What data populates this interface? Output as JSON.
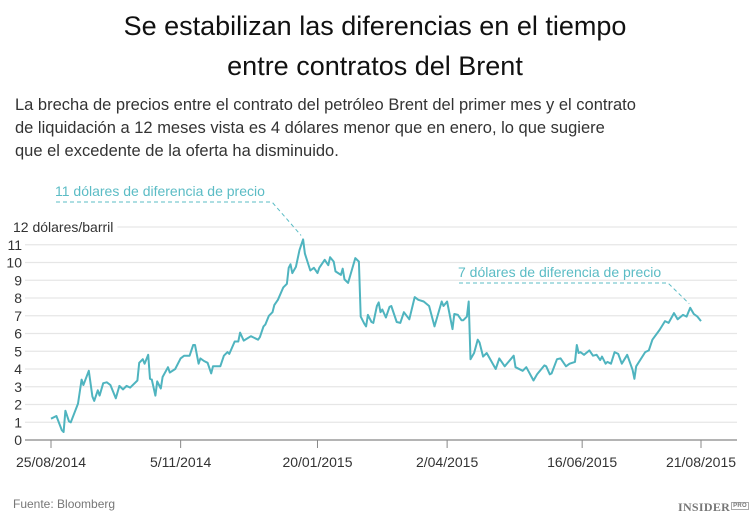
{
  "title_lines": [
    "Se estabilizan las diferencias en el tiempo",
    "entre contratos del Brent"
  ],
  "subtitle_lines": [
    "La brecha de precios entre el contrato del petróleo Brent del primer mes y el contrato",
    "de liquidación a 12 meses vista es 4 dólares menor que en enero, lo que sugiere",
    "que el excedente de la oferta ha disminuido."
  ],
  "source": "Fuente: Bloomberg",
  "logo": {
    "main": "INSIDER",
    "sup": "PRO"
  },
  "colors": {
    "line": "#4fb4bf",
    "annotation": "#5bbcc5",
    "grid": "#e6e6e6",
    "axis": "#888888",
    "text": "#333333"
  },
  "chart_data": {
    "type": "line",
    "ylabel": "dólares/barril",
    "ylim": [
      0,
      12
    ],
    "yticks": [
      0,
      1,
      2,
      3,
      4,
      5,
      6,
      7,
      8,
      9,
      10,
      11,
      12
    ],
    "xlim": [
      "2014-08-25",
      "2015-08-21"
    ],
    "xticks": [
      {
        "date": "2014-08-25",
        "label": "25/08/2014"
      },
      {
        "date": "2014-11-05",
        "label": "5/11/2014"
      },
      {
        "date": "2015-01-20",
        "label": "20/01/2015"
      },
      {
        "date": "2015-04-02",
        "label": "2/04/2015"
      },
      {
        "date": "2015-06-16",
        "label": "16/06/2015"
      },
      {
        "date": "2015-08-21",
        "label": "21/08/2015"
      }
    ],
    "grid": true,
    "annotations": [
      {
        "text": "11 dólares de diferencia de precio",
        "date": "2015-01-12",
        "value": 11.3
      },
      {
        "text": "7 dólares de diferencia de precio",
        "date": "2015-08-15",
        "value": 7.45
      }
    ],
    "series": [
      {
        "points": [
          [
            "2014-08-25",
            1.2
          ],
          [
            "2014-08-28",
            1.35
          ],
          [
            "2014-08-31",
            0.55
          ],
          [
            "2014-09-01",
            0.45
          ],
          [
            "2014-09-02",
            1.65
          ],
          [
            "2014-09-04",
            1.05
          ],
          [
            "2014-09-05",
            1.0
          ],
          [
            "2014-09-09",
            2.05
          ],
          [
            "2014-09-11",
            3.4
          ],
          [
            "2014-09-12",
            3.1
          ],
          [
            "2014-09-15",
            3.9
          ],
          [
            "2014-09-17",
            2.45
          ],
          [
            "2014-09-18",
            2.2
          ],
          [
            "2014-09-20",
            2.8
          ],
          [
            "2014-09-21",
            2.5
          ],
          [
            "2014-09-23",
            3.2
          ],
          [
            "2014-09-25",
            3.25
          ],
          [
            "2014-09-27",
            3.1
          ],
          [
            "2014-09-30",
            2.35
          ],
          [
            "2014-10-02",
            3.05
          ],
          [
            "2014-10-04",
            2.85
          ],
          [
            "2014-10-06",
            3.05
          ],
          [
            "2014-10-08",
            2.95
          ],
          [
            "2014-10-12",
            3.35
          ],
          [
            "2014-10-13",
            4.35
          ],
          [
            "2014-10-15",
            4.55
          ],
          [
            "2014-10-16",
            4.3
          ],
          [
            "2014-10-18",
            4.8
          ],
          [
            "2014-10-19",
            3.45
          ],
          [
            "2014-10-20",
            3.4
          ],
          [
            "2014-10-22",
            2.5
          ],
          [
            "2014-10-23",
            3.3
          ],
          [
            "2014-10-25",
            2.9
          ],
          [
            "2014-10-26",
            3.55
          ],
          [
            "2014-10-29",
            4.1
          ],
          [
            "2014-10-30",
            3.8
          ],
          [
            "2014-11-02",
            4.0
          ],
          [
            "2014-11-05",
            4.6
          ],
          [
            "2014-11-07",
            4.75
          ],
          [
            "2014-11-10",
            4.75
          ],
          [
            "2014-11-12",
            5.35
          ],
          [
            "2014-11-13",
            5.35
          ],
          [
            "2014-11-15",
            4.3
          ],
          [
            "2014-11-16",
            4.6
          ],
          [
            "2014-11-18",
            4.45
          ],
          [
            "2014-11-20",
            4.35
          ],
          [
            "2014-11-22",
            3.75
          ],
          [
            "2014-11-23",
            4.15
          ],
          [
            "2014-11-27",
            4.15
          ],
          [
            "2014-11-29",
            4.75
          ],
          [
            "2014-12-01",
            4.95
          ],
          [
            "2014-12-02",
            4.85
          ],
          [
            "2014-12-05",
            5.55
          ],
          [
            "2014-12-07",
            5.55
          ],
          [
            "2014-12-08",
            6.05
          ],
          [
            "2014-12-10",
            5.6
          ],
          [
            "2014-12-14",
            5.85
          ],
          [
            "2014-12-18",
            5.65
          ],
          [
            "2014-12-19",
            5.8
          ],
          [
            "2014-12-21",
            6.4
          ],
          [
            "2014-12-22",
            6.5
          ],
          [
            "2014-12-24",
            7.0
          ],
          [
            "2014-12-26",
            7.2
          ],
          [
            "2014-12-27",
            7.6
          ],
          [
            "2014-12-29",
            7.9
          ],
          [
            "2015-01-01",
            8.6
          ],
          [
            "2015-01-03",
            8.8
          ],
          [
            "2015-01-04",
            9.7
          ],
          [
            "2015-01-05",
            9.9
          ],
          [
            "2015-01-06",
            9.4
          ],
          [
            "2015-01-08",
            9.75
          ],
          [
            "2015-01-10",
            10.7
          ],
          [
            "2015-01-12",
            11.3
          ],
          [
            "2015-01-13",
            10.5
          ],
          [
            "2015-01-16",
            9.55
          ],
          [
            "2015-01-18",
            9.7
          ],
          [
            "2015-01-20",
            9.4
          ],
          [
            "2015-01-21",
            9.7
          ],
          [
            "2015-01-24",
            10.15
          ],
          [
            "2015-01-26",
            9.85
          ],
          [
            "2015-01-27",
            10.3
          ],
          [
            "2015-01-29",
            10.05
          ],
          [
            "2015-01-30",
            9.5
          ],
          [
            "2015-02-02",
            9.3
          ],
          [
            "2015-02-03",
            9.65
          ],
          [
            "2015-02-04",
            9.05
          ],
          [
            "2015-02-06",
            8.85
          ],
          [
            "2015-02-10",
            10.25
          ],
          [
            "2015-02-12",
            10.05
          ],
          [
            "2015-02-13",
            6.95
          ],
          [
            "2015-02-15",
            6.55
          ],
          [
            "2015-02-16",
            6.4
          ],
          [
            "2015-02-17",
            7.05
          ],
          [
            "2015-02-19",
            6.65
          ],
          [
            "2015-02-20",
            6.6
          ],
          [
            "2015-02-22",
            7.55
          ],
          [
            "2015-02-23",
            7.75
          ],
          [
            "2015-02-24",
            7.2
          ],
          [
            "2015-02-25",
            7.35
          ],
          [
            "2015-02-27",
            6.9
          ],
          [
            "2015-03-01",
            7.5
          ],
          [
            "2015-03-02",
            7.55
          ],
          [
            "2015-03-05",
            6.65
          ],
          [
            "2015-03-07",
            6.6
          ],
          [
            "2015-03-09",
            7.2
          ],
          [
            "2015-03-12",
            6.8
          ],
          [
            "2015-03-15",
            8.05
          ],
          [
            "2015-03-17",
            7.9
          ],
          [
            "2015-03-20",
            7.8
          ],
          [
            "2015-03-23",
            7.55
          ],
          [
            "2015-03-26",
            6.4
          ],
          [
            "2015-03-30",
            7.8
          ],
          [
            "2015-03-31",
            7.55
          ],
          [
            "2015-04-02",
            7.8
          ],
          [
            "2015-04-05",
            6.25
          ],
          [
            "2015-04-06",
            7.1
          ],
          [
            "2015-04-08",
            7.05
          ],
          [
            "2015-04-10",
            6.75
          ],
          [
            "2015-04-11",
            6.75
          ],
          [
            "2015-04-13",
            6.95
          ],
          [
            "2015-04-14",
            7.8
          ],
          [
            "2015-04-15",
            4.55
          ],
          [
            "2015-04-17",
            4.9
          ],
          [
            "2015-04-19",
            5.65
          ],
          [
            "2015-04-20",
            5.5
          ],
          [
            "2015-04-22",
            4.7
          ],
          [
            "2015-04-24",
            4.9
          ],
          [
            "2015-04-29",
            4.0
          ],
          [
            "2015-05-01",
            4.6
          ],
          [
            "2015-05-04",
            4.15
          ],
          [
            "2015-05-09",
            4.75
          ],
          [
            "2015-05-10",
            4.1
          ],
          [
            "2015-05-14",
            3.9
          ],
          [
            "2015-05-16",
            4.1
          ],
          [
            "2015-05-20",
            3.35
          ],
          [
            "2015-05-22",
            3.7
          ],
          [
            "2015-05-26",
            4.2
          ],
          [
            "2015-05-27",
            4.15
          ],
          [
            "2015-05-29",
            3.7
          ],
          [
            "2015-05-30",
            3.75
          ],
          [
            "2015-06-02",
            4.55
          ],
          [
            "2015-06-04",
            4.6
          ],
          [
            "2015-06-07",
            4.15
          ],
          [
            "2015-06-09",
            4.3
          ],
          [
            "2015-06-12",
            4.4
          ],
          [
            "2015-06-13",
            5.35
          ],
          [
            "2015-06-14",
            4.9
          ],
          [
            "2015-06-15",
            4.95
          ],
          [
            "2015-06-17",
            4.8
          ],
          [
            "2015-06-20",
            5.05
          ],
          [
            "2015-06-22",
            4.75
          ],
          [
            "2015-06-24",
            4.8
          ],
          [
            "2015-06-26",
            4.5
          ],
          [
            "2015-06-27",
            4.7
          ],
          [
            "2015-06-29",
            4.3
          ],
          [
            "2015-06-30",
            4.4
          ],
          [
            "2015-07-02",
            4.3
          ],
          [
            "2015-07-04",
            4.95
          ],
          [
            "2015-07-06",
            4.85
          ],
          [
            "2015-07-08",
            4.3
          ],
          [
            "2015-07-11",
            4.8
          ],
          [
            "2015-07-14",
            3.95
          ],
          [
            "2015-07-15",
            3.45
          ],
          [
            "2015-07-16",
            4.15
          ],
          [
            "2015-07-21",
            4.95
          ],
          [
            "2015-07-23",
            5.05
          ],
          [
            "2015-07-25",
            5.65
          ],
          [
            "2015-07-29",
            6.2
          ],
          [
            "2015-08-01",
            6.7
          ],
          [
            "2015-08-03",
            6.6
          ],
          [
            "2015-08-06",
            7.15
          ],
          [
            "2015-08-08",
            6.8
          ],
          [
            "2015-08-11",
            7.05
          ],
          [
            "2015-08-13",
            6.95
          ],
          [
            "2015-08-15",
            7.45
          ],
          [
            "2015-08-17",
            7.1
          ],
          [
            "2015-08-19",
            6.95
          ],
          [
            "2015-08-21",
            6.7
          ]
        ]
      }
    ]
  }
}
